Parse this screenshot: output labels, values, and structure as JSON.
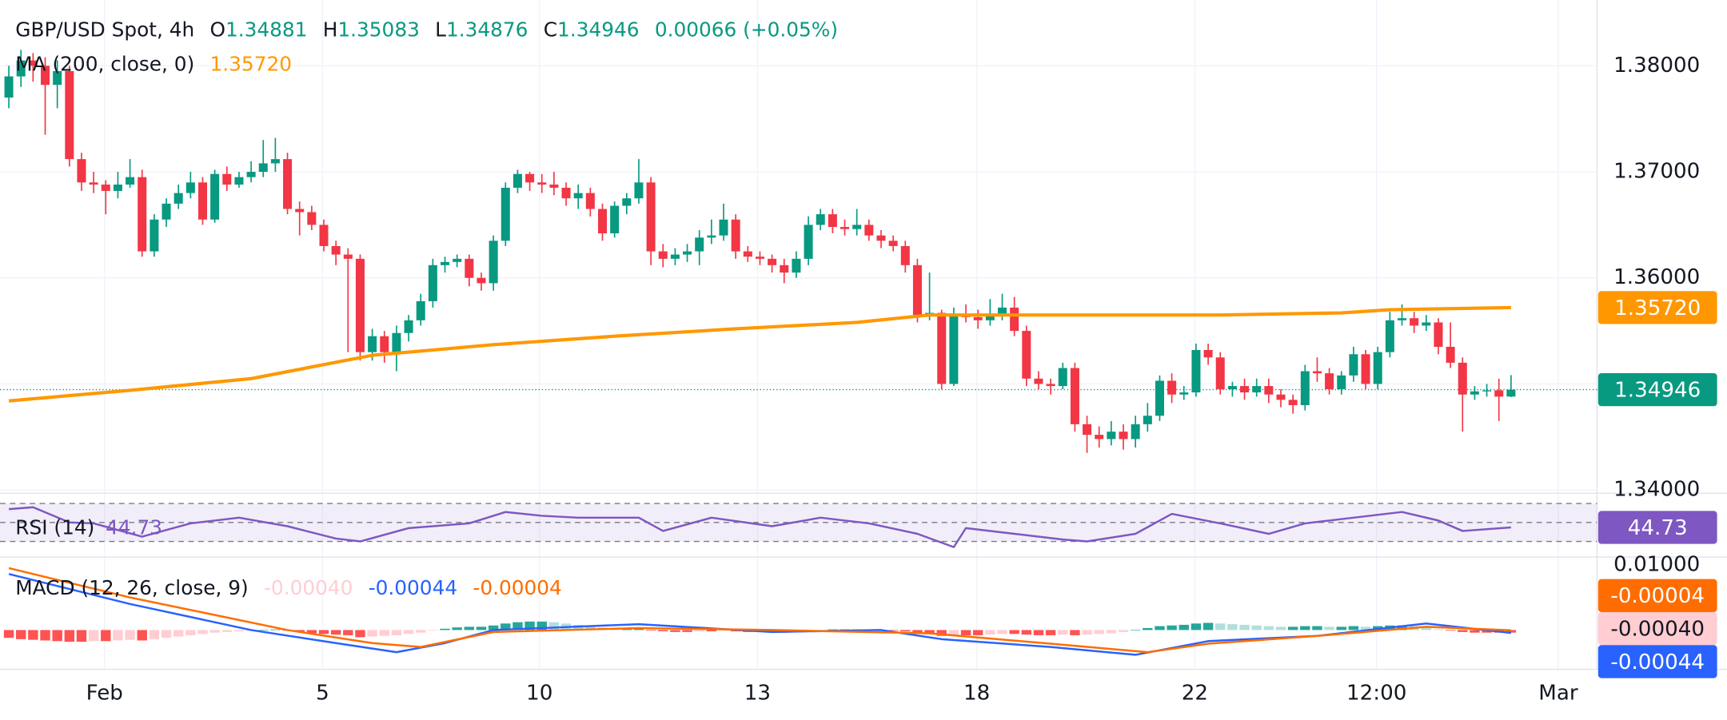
{
  "chart_data": [
    {
      "type": "candlestick",
      "title": "GBP/USD Spot, 4h",
      "ohlc_keys": [
        "O",
        "H",
        "L",
        "C"
      ],
      "change": "0.00066 (+0.05%)",
      "up_color": "#089981",
      "down_color": "#f23645",
      "open": [
        1.377,
        1.379,
        1.3805,
        1.38,
        1.3782,
        1.3795,
        1.3712,
        1.369,
        1.3688,
        1.3682,
        1.3688,
        1.3695,
        1.3625,
        1.3655,
        1.367,
        1.368,
        1.369,
        1.3655,
        1.3698,
        1.3688,
        1.3695,
        1.37,
        1.3708,
        1.3712,
        1.3665,
        1.3662,
        1.365,
        1.363,
        1.3622,
        1.3618,
        1.353,
        1.3545,
        1.353,
        1.3548,
        1.356,
        1.3578,
        1.3612,
        1.3615,
        1.3618,
        1.36,
        1.3595,
        1.3635,
        1.3685,
        1.3698,
        1.369,
        1.3688,
        1.3685,
        1.3675,
        1.368,
        1.3665,
        1.3642,
        1.3668,
        1.3675,
        1.369,
        1.3625,
        1.3618,
        1.3622,
        1.3625,
        1.3638,
        1.364,
        1.3655,
        1.3625,
        1.362,
        1.3618,
        1.3612,
        1.3605,
        1.3618,
        1.365,
        1.366,
        1.3648,
        1.3646,
        1.365,
        1.364,
        1.3635,
        1.363,
        1.3612,
        1.3565,
        1.3567,
        1.35,
        1.3565,
        1.3563,
        1.356,
        1.3565,
        1.3572,
        1.355,
        1.3505,
        1.35,
        1.3498,
        1.3515,
        1.3462,
        1.3452,
        1.3448,
        1.3455,
        1.3448,
        1.3462,
        1.347,
        1.3503,
        1.349,
        1.3492,
        1.3532,
        1.3525,
        1.3495,
        1.3498,
        1.3492,
        1.3498,
        1.349,
        1.3485,
        1.348,
        1.3512,
        1.351,
        1.3495,
        1.3508,
        1.3528,
        1.35,
        1.353,
        1.356,
        1.3562,
        1.3555,
        1.3558,
        1.3535,
        1.352,
        1.349,
        1.3493,
        1.3494,
        1.34881
      ],
      "high": [
        1.38,
        1.3815,
        1.3812,
        1.3808,
        1.3805,
        1.38,
        1.3718,
        1.37,
        1.3692,
        1.37,
        1.3712,
        1.3702,
        1.366,
        1.3675,
        1.3688,
        1.37,
        1.3695,
        1.3702,
        1.3705,
        1.37,
        1.371,
        1.373,
        1.3732,
        1.3718,
        1.3672,
        1.3668,
        1.3655,
        1.3635,
        1.3628,
        1.3622,
        1.3552,
        1.355,
        1.3555,
        1.3565,
        1.3585,
        1.3618,
        1.362,
        1.3622,
        1.3622,
        1.3605,
        1.364,
        1.369,
        1.3702,
        1.37,
        1.3698,
        1.37,
        1.369,
        1.3688,
        1.3685,
        1.367,
        1.3672,
        1.368,
        1.3712,
        1.3695,
        1.3632,
        1.3628,
        1.3632,
        1.3645,
        1.3655,
        1.367,
        1.366,
        1.363,
        1.3625,
        1.3622,
        1.3618,
        1.3625,
        1.3658,
        1.3665,
        1.3665,
        1.3655,
        1.3665,
        1.3655,
        1.3645,
        1.364,
        1.3635,
        1.3618,
        1.3605,
        1.357,
        1.3572,
        1.3575,
        1.357,
        1.358,
        1.3585,
        1.3582,
        1.3555,
        1.3512,
        1.3505,
        1.352,
        1.352,
        1.347,
        1.346,
        1.3465,
        1.3462,
        1.347,
        1.3482,
        1.3508,
        1.351,
        1.3498,
        1.3538,
        1.3538,
        1.353,
        1.3502,
        1.3505,
        1.3505,
        1.3505,
        1.3495,
        1.349,
        1.3518,
        1.3525,
        1.3515,
        1.3512,
        1.3535,
        1.3532,
        1.3535,
        1.3568,
        1.3575,
        1.3568,
        1.3565,
        1.3562,
        1.3558,
        1.3525,
        1.3498,
        1.35,
        1.3505,
        1.35083
      ],
      "low": [
        1.376,
        1.378,
        1.3785,
        1.3735,
        1.376,
        1.3705,
        1.3682,
        1.368,
        1.366,
        1.3675,
        1.3685,
        1.362,
        1.362,
        1.3648,
        1.3665,
        1.3675,
        1.365,
        1.3652,
        1.3682,
        1.3685,
        1.369,
        1.3695,
        1.37,
        1.366,
        1.364,
        1.3645,
        1.3625,
        1.3612,
        1.353,
        1.3522,
        1.3522,
        1.352,
        1.3512,
        1.354,
        1.3555,
        1.3572,
        1.3605,
        1.361,
        1.3592,
        1.3588,
        1.3588,
        1.363,
        1.368,
        1.3682,
        1.368,
        1.3678,
        1.3668,
        1.3665,
        1.3658,
        1.3635,
        1.3638,
        1.366,
        1.367,
        1.3612,
        1.361,
        1.3612,
        1.3615,
        1.3612,
        1.3632,
        1.3635,
        1.3618,
        1.3615,
        1.3612,
        1.3605,
        1.3595,
        1.36,
        1.3612,
        1.3645,
        1.3642,
        1.364,
        1.364,
        1.3635,
        1.3628,
        1.3625,
        1.3605,
        1.3558,
        1.356,
        1.3495,
        1.3498,
        1.3558,
        1.3552,
        1.3555,
        1.356,
        1.3545,
        1.3498,
        1.3495,
        1.349,
        1.3495,
        1.3455,
        1.3435,
        1.344,
        1.3442,
        1.3438,
        1.344,
        1.3455,
        1.3465,
        1.3482,
        1.3485,
        1.3488,
        1.3518,
        1.349,
        1.3488,
        1.3485,
        1.3488,
        1.3482,
        1.3478,
        1.3472,
        1.3475,
        1.3502,
        1.349,
        1.349,
        1.3502,
        1.3495,
        1.3495,
        1.3525,
        1.3555,
        1.3548,
        1.355,
        1.3528,
        1.3515,
        1.3455,
        1.3485,
        1.3488,
        1.3465,
        1.34876
      ],
      "close": [
        1.379,
        1.3805,
        1.38,
        1.3782,
        1.3795,
        1.3712,
        1.369,
        1.3688,
        1.3682,
        1.3688,
        1.3695,
        1.3625,
        1.3655,
        1.367,
        1.368,
        1.369,
        1.3655,
        1.3698,
        1.3688,
        1.3695,
        1.37,
        1.3708,
        1.3712,
        1.3665,
        1.3662,
        1.365,
        1.363,
        1.3622,
        1.3618,
        1.353,
        1.3545,
        1.353,
        1.3548,
        1.356,
        1.3578,
        1.3612,
        1.3615,
        1.3618,
        1.36,
        1.3595,
        1.3635,
        1.3685,
        1.3698,
        1.369,
        1.3688,
        1.3685,
        1.3675,
        1.368,
        1.3665,
        1.3642,
        1.3668,
        1.3675,
        1.369,
        1.3625,
        1.3618,
        1.3622,
        1.3625,
        1.3638,
        1.364,
        1.3655,
        1.3625,
        1.362,
        1.3618,
        1.3612,
        1.3605,
        1.3618,
        1.365,
        1.366,
        1.3648,
        1.3646,
        1.365,
        1.364,
        1.3635,
        1.363,
        1.3612,
        1.3565,
        1.3567,
        1.35,
        1.3565,
        1.3563,
        1.356,
        1.3565,
        1.3572,
        1.355,
        1.3505,
        1.35,
        1.3498,
        1.3515,
        1.3462,
        1.3452,
        1.3448,
        1.3455,
        1.3448,
        1.3462,
        1.347,
        1.3503,
        1.349,
        1.3492,
        1.3532,
        1.3525,
        1.3495,
        1.3498,
        1.3492,
        1.3498,
        1.349,
        1.3485,
        1.348,
        1.3512,
        1.351,
        1.3495,
        1.3508,
        1.3528,
        1.35,
        1.353,
        1.356,
        1.3562,
        1.3555,
        1.3558,
        1.3535,
        1.352,
        1.349,
        1.3493,
        1.3494,
        1.3488,
        1.34946
      ],
      "overlay": {
        "name": "MA (200, close, 0)",
        "label": "1.35720",
        "color": "#ff9800",
        "x": [
          0,
          10,
          20,
          30,
          40,
          50,
          60,
          70,
          76,
          90,
          100,
          110,
          114,
          124
        ],
        "values": [
          1.3484,
          1.3494,
          1.3505,
          1.3527,
          1.3537,
          1.3545,
          1.3552,
          1.3558,
          1.3565,
          1.3565,
          1.3565,
          1.3567,
          1.357,
          1.3572
        ]
      },
      "ylim": [
        1.3398,
        1.3862
      ],
      "yticks": [
        {
          "value": 1.34,
          "label": "1.34000"
        },
        {
          "value": 1.35,
          "label": "1.35000"
        },
        {
          "value": 1.36,
          "label": "1.36000"
        },
        {
          "value": 1.37,
          "label": "1.37000"
        },
        {
          "value": 1.38,
          "label": "1.38000"
        }
      ],
      "xlim": [
        -0.73,
        131.1
      ],
      "xticks": [
        {
          "value": 7.9,
          "label": "Feb"
        },
        {
          "value": 25.9,
          "label": "5"
        },
        {
          "value": 43.8,
          "label": "10"
        },
        {
          "value": 61.8,
          "label": "13"
        },
        {
          "value": 79.9,
          "label": "18"
        },
        {
          "value": 97.9,
          "label": "22"
        },
        {
          "value": 112.9,
          "label": "12:00"
        },
        {
          "value": 127.9,
          "label": "Mar"
        }
      ],
      "grid": true
    },
    {
      "type": "line",
      "name": "RSI (14)",
      "color": "#7e57c2",
      "x": [
        0,
        2,
        5,
        7,
        11,
        15,
        19,
        23,
        27,
        29,
        33,
        38,
        41,
        44,
        47,
        52,
        54,
        58,
        63,
        67,
        71,
        75,
        78,
        79,
        83,
        87,
        89,
        93,
        96,
        100,
        104,
        107,
        111,
        115,
        118,
        120,
        124
      ],
      "values": [
        64,
        66,
        50,
        49,
        35,
        49,
        55,
        46,
        33,
        30,
        44,
        49,
        61,
        57,
        55,
        55,
        41,
        55,
        46,
        55,
        49,
        38,
        24,
        44,
        38,
        32,
        30,
        38,
        59,
        49,
        38,
        49,
        55,
        61,
        52,
        41,
        44.73
      ],
      "ylim": [
        17,
        75
      ],
      "yticks": [
        30,
        50,
        70
      ]
    },
    {
      "type": "macd",
      "name": "MACD (12, 26, close, 9)",
      "histogram": {
        "label": "-0.00040",
        "colors": [
          "#26a69a",
          "#b2dfdb",
          "#ff5252",
          "#ffcdd2"
        ],
        "values": [
          -0.0012,
          -0.0014,
          -0.0015,
          -0.0016,
          -0.0017,
          -0.0018,
          -0.0018,
          -0.0017,
          -0.0017,
          -0.0016,
          -0.0015,
          -0.0016,
          -0.0014,
          -0.0012,
          -0.001,
          -0.0008,
          -0.0006,
          -0.0004,
          -0.0003,
          -0.0002,
          -0.0001,
          0.0,
          0.0001,
          -0.0001,
          -0.0003,
          -0.0005,
          -0.0006,
          -0.0007,
          -0.0008,
          -0.0011,
          -0.001,
          -0.0009,
          -0.0008,
          -0.0006,
          -0.0004,
          -0.0001,
          0.0002,
          0.0004,
          0.0005,
          0.0005,
          0.0007,
          0.001,
          0.0012,
          0.0013,
          0.0013,
          0.0012,
          0.001,
          0.0008,
          0.0006,
          0.0004,
          0.0003,
          0.0003,
          0.0003,
          -0.0001,
          -0.0002,
          -0.0003,
          -0.0003,
          -0.0002,
          -0.0002,
          -0.0001,
          -0.0002,
          -0.0003,
          -0.0003,
          -0.0003,
          -0.0004,
          -0.0003,
          -0.0001,
          0.0,
          0.0001,
          0.0001,
          0.0001,
          0.0,
          0.0,
          -0.0001,
          -0.0002,
          -0.0004,
          -0.0005,
          -0.0009,
          -0.0008,
          -0.0008,
          -0.0008,
          -0.0007,
          -0.0006,
          -0.0006,
          -0.0007,
          -0.0008,
          -0.0008,
          -0.0007,
          -0.0008,
          -0.0007,
          -0.0006,
          -0.0005,
          -0.0003,
          0.0,
          0.0003,
          0.0006,
          0.0007,
          0.0008,
          0.001,
          0.0011,
          0.001,
          0.0009,
          0.0008,
          0.0007,
          0.0006,
          0.0005,
          0.0005,
          0.0006,
          0.0006,
          0.0005,
          0.0005,
          0.0006,
          0.0005,
          0.0006,
          0.0007,
          0.0007,
          0.0006,
          0.0004,
          0.0001,
          -0.0001,
          -0.0003,
          -0.0004,
          -0.0004,
          -0.0004,
          -0.0004
        ]
      },
      "series": [
        {
          "color": "#2962ff",
          "x": [
            0,
            10,
            20,
            27,
            32,
            36,
            40,
            52,
            63,
            72,
            77,
            86,
            93,
            99,
            108,
            117,
            124
          ],
          "values": [
            0.0086,
            0.004,
            0.0,
            -0.002,
            -0.0034,
            -0.002,
            0.0,
            0.0009,
            -0.0003,
            0.0,
            -0.0014,
            -0.0026,
            -0.0038,
            -0.0017,
            -0.0009,
            0.001,
            -0.00044
          ]
        },
        {
          "color": "#ff6d00",
          "x": [
            0,
            10,
            23,
            30,
            34,
            40,
            52,
            63,
            76,
            86,
            94,
            99,
            108,
            117,
            124
          ],
          "values": [
            0.0095,
            0.005,
            0.0,
            -0.002,
            -0.0026,
            -0.0003,
            0.0003,
            0.0,
            -0.0005,
            -0.0021,
            -0.0034,
            -0.0021,
            -0.0009,
            0.0005,
            -4e-05
          ]
        }
      ],
      "ylim": [
        -0.00603,
        0.0112
      ],
      "yticks": [
        {
          "value": 0.01,
          "label": "0.01000"
        }
      ]
    }
  ]
}
